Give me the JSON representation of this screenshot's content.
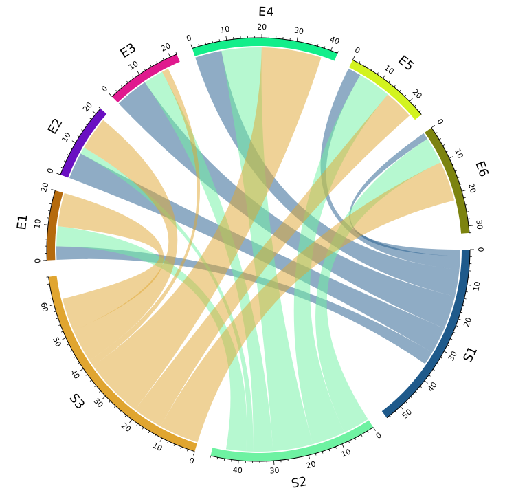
{
  "chart_data": {
    "type": "chord",
    "title": "",
    "sectors": [
      {
        "name": "S1",
        "total": 55,
        "color": "#1f5a8b",
        "tick_labels": [
          "0",
          "10",
          "20",
          "30",
          "40",
          "50"
        ]
      },
      {
        "name": "S2",
        "total": 48,
        "color": "#6ef2a2",
        "tick_labels": [
          "0",
          "10",
          "20",
          "30",
          "40"
        ]
      },
      {
        "name": "S3",
        "total": 68,
        "color": "#e0a530",
        "tick_labels": [
          "0",
          "10",
          "20",
          "30",
          "40",
          "50",
          "60"
        ]
      },
      {
        "name": "E1",
        "total": 20,
        "color": "#b56a0d",
        "tick_labels": [
          "0",
          "10",
          "20"
        ]
      },
      {
        "name": "E2",
        "total": 22,
        "color": "#6a0fc2",
        "tick_labels": [
          "0",
          "10",
          "20"
        ]
      },
      {
        "name": "E3",
        "total": 22,
        "color": "#e0198e",
        "tick_labels": [
          "0",
          "10",
          "20"
        ]
      },
      {
        "name": "E4",
        "total": 42,
        "color": "#13ee8a",
        "tick_labels": [
          "0",
          "10",
          "20",
          "30",
          "40"
        ]
      },
      {
        "name": "E5",
        "total": 25,
        "color": "#d3f31f",
        "tick_labels": [
          "0",
          "10",
          "20"
        ]
      },
      {
        "name": "E6",
        "total": 32,
        "color": "#7c830f",
        "tick_labels": [
          "0",
          "10",
          "20",
          "30"
        ]
      }
    ],
    "flows": [
      {
        "from": "S1",
        "to": "E6",
        "value": 2
      },
      {
        "from": "S1",
        "to": "E5",
        "value": 4
      },
      {
        "from": "S1",
        "to": "E4",
        "value": 8
      },
      {
        "from": "S1",
        "to": "E3",
        "value": 10
      },
      {
        "from": "S1",
        "to": "E2",
        "value": 8
      },
      {
        "from": "S1",
        "to": "E1",
        "value": 4
      },
      {
        "from": "S2",
        "to": "E6",
        "value": 8
      },
      {
        "from": "S2",
        "to": "E5",
        "value": 10
      },
      {
        "from": "S2",
        "to": "E4",
        "value": 12
      },
      {
        "from": "S2",
        "to": "E3",
        "value": 6
      },
      {
        "from": "S2",
        "to": "E2",
        "value": 2
      },
      {
        "from": "S2",
        "to": "E1",
        "value": 6
      },
      {
        "from": "S3",
        "to": "E6",
        "value": 12
      },
      {
        "from": "S3",
        "to": "E5",
        "value": 9
      },
      {
        "from": "S3",
        "to": "E4",
        "value": 18
      },
      {
        "from": "S3",
        "to": "E3",
        "value": 2
      },
      {
        "from": "S3",
        "to": "E2",
        "value": 10
      },
      {
        "from": "S3",
        "to": "E1",
        "value": 10
      }
    ]
  }
}
